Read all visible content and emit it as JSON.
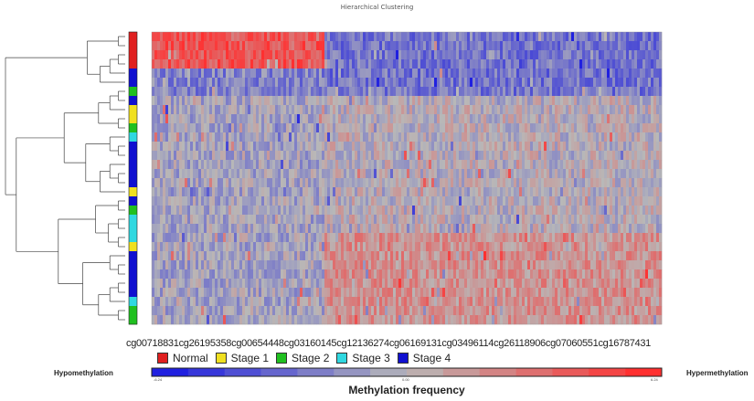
{
  "chart_data": {
    "type": "heatmap",
    "title": "Hierarchical Clustering",
    "x_tick_labels": [
      "cg00718831",
      "cg26195358",
      "cg00654448",
      "cg03160145",
      "cg12136274",
      "cg06169131",
      "cg03496114",
      "cg26118906",
      "cg07060551",
      "cg16787431"
    ],
    "legend": [
      {
        "label": "Normal",
        "color": "#e02020"
      },
      {
        "label": "Stage 1",
        "color": "#f0e020"
      },
      {
        "label": "Stage 2",
        "color": "#20c020"
      },
      {
        "label": "Stage 3",
        "color": "#30d8e0"
      },
      {
        "label": "Stage 4",
        "color": "#1010d0"
      }
    ],
    "row_stages": [
      "Normal",
      "Normal",
      "Normal",
      "Normal",
      "Stage 4",
      "Stage 4",
      "Stage 2",
      "Stage 4",
      "Stage 1",
      "Stage 1",
      "Stage 2",
      "Stage 3",
      "Stage 4",
      "Stage 4",
      "Stage 4",
      "Stage 4",
      "Stage 4",
      "Stage 1",
      "Stage 4",
      "Stage 2",
      "Stage 3",
      "Stage 3",
      "Stage 3",
      "Stage 1",
      "Stage 4",
      "Stage 4",
      "Stage 4",
      "Stage 4",
      "Stage 4",
      "Stage 3",
      "Stage 2",
      "Stage 2"
    ],
    "row_block_pattern": [
      {
        "rows": [
          0,
          3
        ],
        "left": "hyper",
        "right": "hypo"
      },
      {
        "rows": [
          4,
          6
        ],
        "left": "mixed-hypo",
        "right": "hypo"
      },
      {
        "rows": [
          7,
          21
        ],
        "left": "neutral-hypo",
        "right": "neutral"
      },
      {
        "rows": [
          22,
          31
        ],
        "left": "neutral-hypo",
        "right": "hyper-mild"
      }
    ],
    "color_scale": {
      "label": "Methylation frequency",
      "low_label": "Hypomethylation",
      "high_label": "Hypermethylation",
      "min": -6.24,
      "mid": 0.0,
      "max": 6.24,
      "tick_labels": [
        "-6.24",
        "0.00",
        "6.24"
      ],
      "colors": [
        "#2020e0",
        "#b8b8b8",
        "#ff3030"
      ]
    }
  }
}
